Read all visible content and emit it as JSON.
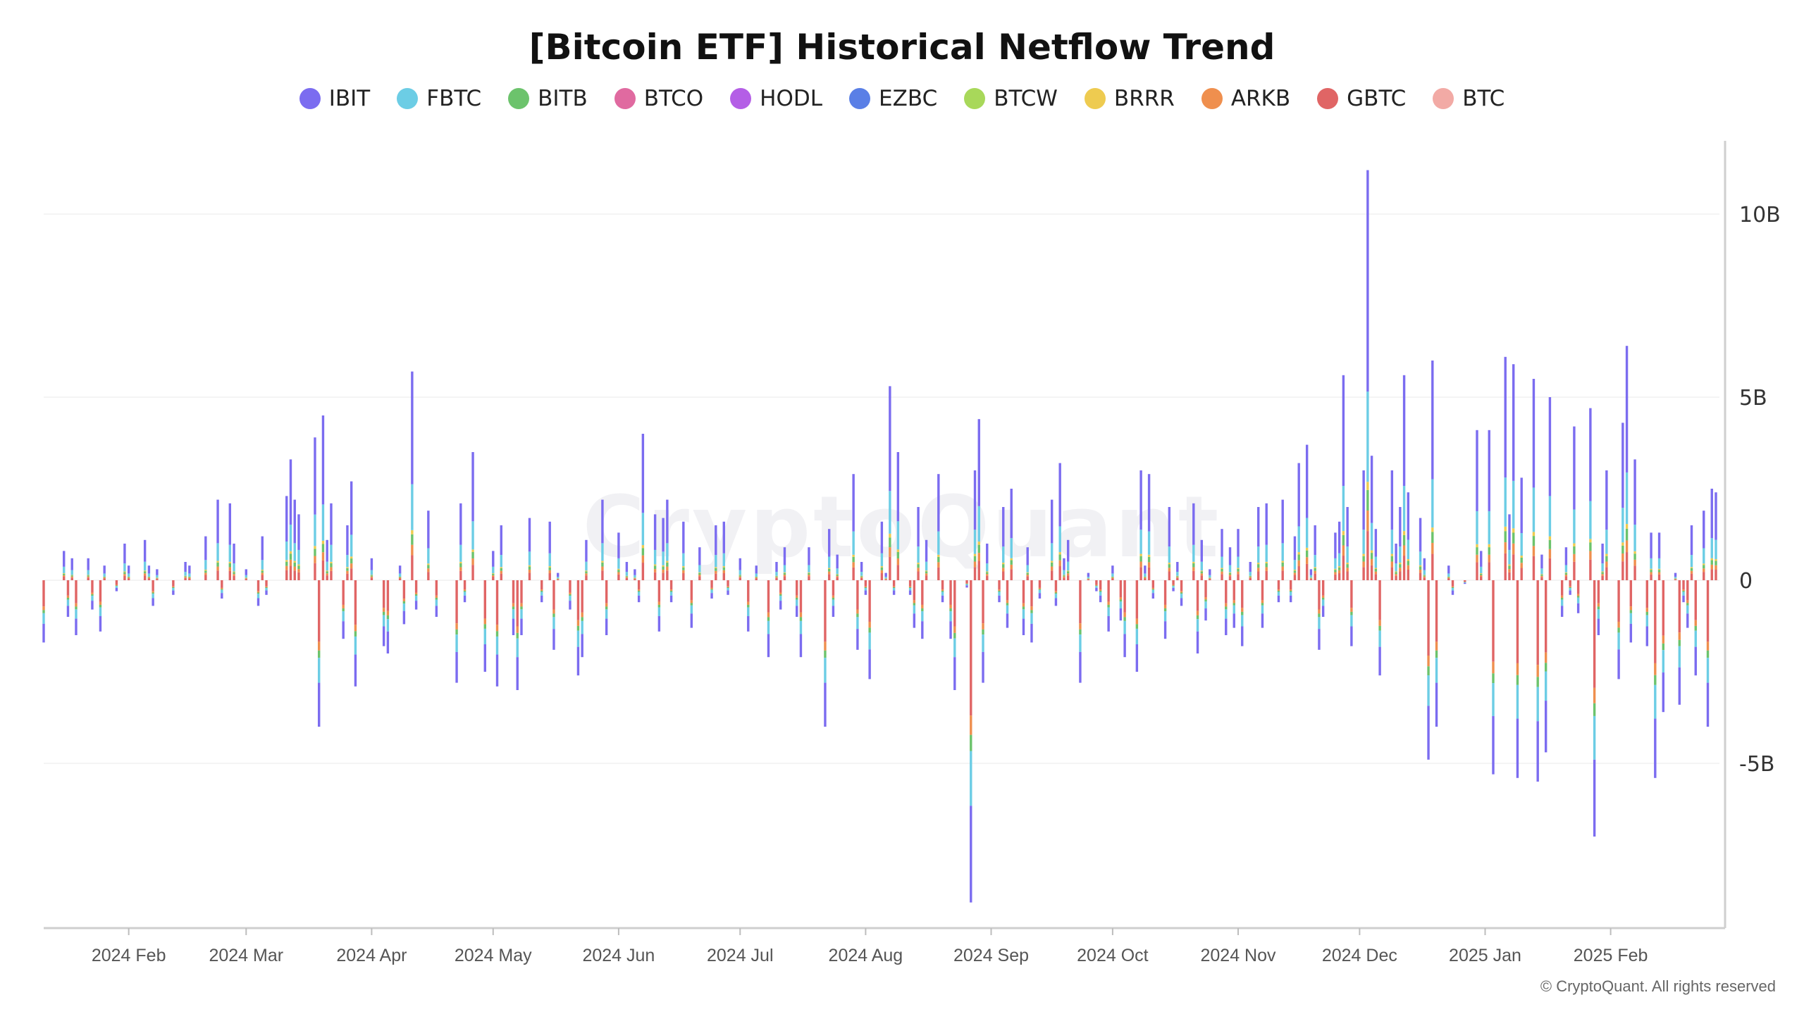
{
  "watermark": "CryptoQuant",
  "copyright": "© CryptoQuant. All rights reserved",
  "chart_data": {
    "type": "bar",
    "stacked": true,
    "title": "[Bitcoin ETF] Historical Netflow Trend",
    "legend_position": "top-center",
    "grid": true,
    "ylim": [
      -9.5,
      12
    ],
    "yticks": [
      {
        "value": 10,
        "label": "10B"
      },
      {
        "value": 5,
        "label": "5B"
      },
      {
        "value": 0,
        "label": "0"
      },
      {
        "value": -5,
        "label": "-5B"
      }
    ],
    "xlim": [
      "2024-01-11",
      "2025-02-27"
    ],
    "xticks": [
      {
        "date": "2024-02-01",
        "label": "2024 Feb"
      },
      {
        "date": "2024-03-01",
        "label": "2024 Mar"
      },
      {
        "date": "2024-04-01",
        "label": "2024 Apr"
      },
      {
        "date": "2024-05-01",
        "label": "2024 May"
      },
      {
        "date": "2024-06-01",
        "label": "2024 Jun"
      },
      {
        "date": "2024-07-01",
        "label": "2024 Jul"
      },
      {
        "date": "2024-08-01",
        "label": "2024 Aug"
      },
      {
        "date": "2024-09-01",
        "label": "2024 Sep"
      },
      {
        "date": "2024-10-01",
        "label": "2024 Oct"
      },
      {
        "date": "2024-11-01",
        "label": "2024 Nov"
      },
      {
        "date": "2024-12-01",
        "label": "2024 Dec"
      },
      {
        "date": "2025-01-01",
        "label": "2025 Jan"
      },
      {
        "date": "2025-02-01",
        "label": "2025 Feb"
      }
    ],
    "series": [
      {
        "name": "IBIT",
        "color": "#7b6cf0"
      },
      {
        "name": "FBTC",
        "color": "#6ccde5"
      },
      {
        "name": "BITB",
        "color": "#6cc36c"
      },
      {
        "name": "BTCO",
        "color": "#e06aa0"
      },
      {
        "name": "HODL",
        "color": "#b45ee6"
      },
      {
        "name": "EZBC",
        "color": "#5a7fe6"
      },
      {
        "name": "BTCW",
        "color": "#a8d85a"
      },
      {
        "name": "BRRR",
        "color": "#eecb50"
      },
      {
        "name": "ARKB",
        "color": "#ef8f4e"
      },
      {
        "name": "GBTC",
        "color": "#e06565"
      },
      {
        "name": "BTC",
        "color": "#f2aaa5"
      }
    ],
    "bars": [
      {
        "x": "2024-01-11",
        "v": -1.7
      },
      {
        "x": "2024-01-16",
        "v": 0.8
      },
      {
        "x": "2024-01-17",
        "v": -1.0
      },
      {
        "x": "2024-01-18",
        "v": 0.6
      },
      {
        "x": "2024-01-19",
        "v": -1.5
      },
      {
        "x": "2024-01-22",
        "v": 0.6
      },
      {
        "x": "2024-01-23",
        "v": -0.8
      },
      {
        "x": "2024-01-25",
        "v": -1.4
      },
      {
        "x": "2024-01-26",
        "v": 0.4
      },
      {
        "x": "2024-01-29",
        "v": -0.3
      },
      {
        "x": "2024-01-31",
        "v": 1.0
      },
      {
        "x": "2024-02-01",
        "v": 0.4
      },
      {
        "x": "2024-02-05",
        "v": 1.1
      },
      {
        "x": "2024-02-06",
        "v": 0.4
      },
      {
        "x": "2024-02-07",
        "v": -0.7
      },
      {
        "x": "2024-02-08",
        "v": 0.3
      },
      {
        "x": "2024-02-12",
        "v": -0.4
      },
      {
        "x": "2024-02-15",
        "v": 0.5
      },
      {
        "x": "2024-02-16",
        "v": 0.4
      },
      {
        "x": "2024-02-20",
        "v": 1.2
      },
      {
        "x": "2024-02-23",
        "v": 2.2
      },
      {
        "x": "2024-02-24",
        "v": -0.5
      },
      {
        "x": "2024-02-26",
        "v": 2.1
      },
      {
        "x": "2024-02-27",
        "v": 1.0
      },
      {
        "x": "2024-03-01",
        "v": 0.3
      },
      {
        "x": "2024-03-04",
        "v": -0.7
      },
      {
        "x": "2024-03-05",
        "v": 1.2
      },
      {
        "x": "2024-03-06",
        "v": -0.4
      },
      {
        "x": "2024-03-11",
        "v": 2.3
      },
      {
        "x": "2024-03-12",
        "v": 3.3
      },
      {
        "x": "2024-03-13",
        "v": 2.2
      },
      {
        "x": "2024-03-14",
        "v": 1.8
      },
      {
        "x": "2024-03-18",
        "v": 3.9
      },
      {
        "x": "2024-03-19",
        "v": -4.0
      },
      {
        "x": "2024-03-20",
        "v": 4.5
      },
      {
        "x": "2024-03-21",
        "v": 1.1
      },
      {
        "x": "2024-03-22",
        "v": 2.1
      },
      {
        "x": "2024-03-25",
        "v": -1.6
      },
      {
        "x": "2024-03-26",
        "v": 1.5
      },
      {
        "x": "2024-03-27",
        "v": 2.7
      },
      {
        "x": "2024-03-28",
        "v": -2.9
      },
      {
        "x": "2024-04-01",
        "v": 0.6
      },
      {
        "x": "2024-04-04",
        "v": -1.8
      },
      {
        "x": "2024-04-05",
        "v": -2.0
      },
      {
        "x": "2024-04-08",
        "v": 0.4
      },
      {
        "x": "2024-04-09",
        "v": -1.2
      },
      {
        "x": "2024-04-11",
        "v": 5.7
      },
      {
        "x": "2024-04-12",
        "v": -0.8
      },
      {
        "x": "2024-04-15",
        "v": 1.9
      },
      {
        "x": "2024-04-17",
        "v": -1.0
      },
      {
        "x": "2024-04-22",
        "v": -2.8
      },
      {
        "x": "2024-04-23",
        "v": 2.1
      },
      {
        "x": "2024-04-24",
        "v": -0.6
      },
      {
        "x": "2024-04-26",
        "v": 3.5
      },
      {
        "x": "2024-04-29",
        "v": -2.5
      },
      {
        "x": "2024-05-01",
        "v": 0.8
      },
      {
        "x": "2024-05-02",
        "v": -2.9
      },
      {
        "x": "2024-05-03",
        "v": 1.5
      },
      {
        "x": "2024-05-06",
        "v": -1.5
      },
      {
        "x": "2024-05-07",
        "v": -3.0
      },
      {
        "x": "2024-05-08",
        "v": -1.5
      },
      {
        "x": "2024-05-10",
        "v": 1.7
      },
      {
        "x": "2024-05-13",
        "v": -0.6
      },
      {
        "x": "2024-05-15",
        "v": 1.6
      },
      {
        "x": "2024-05-16",
        "v": -1.9
      },
      {
        "x": "2024-05-17",
        "v": 0.2
      },
      {
        "x": "2024-05-20",
        "v": -0.8
      },
      {
        "x": "2024-05-22",
        "v": -2.6
      },
      {
        "x": "2024-05-23",
        "v": -2.1
      },
      {
        "x": "2024-05-24",
        "v": 1.1
      },
      {
        "x": "2024-05-28",
        "v": 2.2
      },
      {
        "x": "2024-05-29",
        "v": -1.5
      },
      {
        "x": "2024-06-01",
        "v": 1.3
      },
      {
        "x": "2024-06-03",
        "v": 0.5
      },
      {
        "x": "2024-06-05",
        "v": 0.3
      },
      {
        "x": "2024-06-06",
        "v": -0.6
      },
      {
        "x": "2024-06-07",
        "v": 4.0
      },
      {
        "x": "2024-06-10",
        "v": 1.8
      },
      {
        "x": "2024-06-11",
        "v": -1.4
      },
      {
        "x": "2024-06-12",
        "v": 1.7
      },
      {
        "x": "2024-06-13",
        "v": 2.2
      },
      {
        "x": "2024-06-14",
        "v": -0.6
      },
      {
        "x": "2024-06-17",
        "v": 1.6
      },
      {
        "x": "2024-06-19",
        "v": -1.3
      },
      {
        "x": "2024-06-21",
        "v": 0.9
      },
      {
        "x": "2024-06-24",
        "v": -0.5
      },
      {
        "x": "2024-06-25",
        "v": 1.5
      },
      {
        "x": "2024-06-27",
        "v": 1.6
      },
      {
        "x": "2024-06-28",
        "v": -0.4
      },
      {
        "x": "2024-07-01",
        "v": 0.6
      },
      {
        "x": "2024-07-03",
        "v": -1.4
      },
      {
        "x": "2024-07-05",
        "v": 0.4
      },
      {
        "x": "2024-07-08",
        "v": -2.1
      },
      {
        "x": "2024-07-10",
        "v": 0.5
      },
      {
        "x": "2024-07-11",
        "v": -0.8
      },
      {
        "x": "2024-07-12",
        "v": 0.9
      },
      {
        "x": "2024-07-15",
        "v": -1.0
      },
      {
        "x": "2024-07-16",
        "v": -2.1
      },
      {
        "x": "2024-07-18",
        "v": 0.9
      },
      {
        "x": "2024-07-22",
        "v": -4.0
      },
      {
        "x": "2024-07-23",
        "v": 1.4
      },
      {
        "x": "2024-07-24",
        "v": -1.0
      },
      {
        "x": "2024-07-25",
        "v": 0.7
      },
      {
        "x": "2024-07-29",
        "v": 2.9
      },
      {
        "x": "2024-07-30",
        "v": -1.9
      },
      {
        "x": "2024-07-31",
        "v": 0.5
      },
      {
        "x": "2024-08-01",
        "v": -0.4
      },
      {
        "x": "2024-08-02",
        "v": -2.7
      },
      {
        "x": "2024-08-05",
        "v": 1.6
      },
      {
        "x": "2024-08-06",
        "v": 0.2
      },
      {
        "x": "2024-08-07",
        "v": 5.3
      },
      {
        "x": "2024-08-08",
        "v": -0.4
      },
      {
        "x": "2024-08-09",
        "v": 3.5
      },
      {
        "x": "2024-08-12",
        "v": -0.4
      },
      {
        "x": "2024-08-13",
        "v": -1.3
      },
      {
        "x": "2024-08-14",
        "v": 2.0
      },
      {
        "x": "2024-08-15",
        "v": -1.6
      },
      {
        "x": "2024-08-16",
        "v": 1.1
      },
      {
        "x": "2024-08-19",
        "v": 2.9
      },
      {
        "x": "2024-08-20",
        "v": -0.6
      },
      {
        "x": "2024-08-22",
        "v": -1.6
      },
      {
        "x": "2024-08-23",
        "v": -3.0
      },
      {
        "x": "2024-08-26",
        "v": -0.2
      },
      {
        "x": "2024-08-27",
        "v": -8.8
      },
      {
        "x": "2024-08-28",
        "v": 3.0
      },
      {
        "x": "2024-08-29",
        "v": 4.4
      },
      {
        "x": "2024-08-30",
        "v": -2.8
      },
      {
        "x": "2024-08-31",
        "v": 1.0
      },
      {
        "x": "2024-09-03",
        "v": -0.6
      },
      {
        "x": "2024-09-04",
        "v": 2.0
      },
      {
        "x": "2024-09-05",
        "v": -1.3
      },
      {
        "x": "2024-09-06",
        "v": 2.5
      },
      {
        "x": "2024-09-09",
        "v": -1.5
      },
      {
        "x": "2024-09-10",
        "v": 0.9
      },
      {
        "x": "2024-09-11",
        "v": -1.7
      },
      {
        "x": "2024-09-13",
        "v": -0.5
      },
      {
        "x": "2024-09-16",
        "v": 2.2
      },
      {
        "x": "2024-09-17",
        "v": -0.7
      },
      {
        "x": "2024-09-18",
        "v": 3.2
      },
      {
        "x": "2024-09-19",
        "v": 0.6
      },
      {
        "x": "2024-09-20",
        "v": 1.1
      },
      {
        "x": "2024-09-23",
        "v": -2.8
      },
      {
        "x": "2024-09-25",
        "v": 0.2
      },
      {
        "x": "2024-09-27",
        "v": -0.3
      },
      {
        "x": "2024-09-28",
        "v": -0.6
      },
      {
        "x": "2024-09-30",
        "v": -1.4
      },
      {
        "x": "2024-10-01",
        "v": 0.4
      },
      {
        "x": "2024-10-03",
        "v": -1.1
      },
      {
        "x": "2024-10-04",
        "v": -2.1
      },
      {
        "x": "2024-10-07",
        "v": -2.5
      },
      {
        "x": "2024-10-08",
        "v": 3.0
      },
      {
        "x": "2024-10-09",
        "v": 0.4
      },
      {
        "x": "2024-10-10",
        "v": 2.9
      },
      {
        "x": "2024-10-11",
        "v": -0.5
      },
      {
        "x": "2024-10-14",
        "v": -1.6
      },
      {
        "x": "2024-10-15",
        "v": 2.0
      },
      {
        "x": "2024-10-16",
        "v": -0.3
      },
      {
        "x": "2024-10-17",
        "v": 0.5
      },
      {
        "x": "2024-10-18",
        "v": -0.7
      },
      {
        "x": "2024-10-21",
        "v": 2.1
      },
      {
        "x": "2024-10-22",
        "v": -2.0
      },
      {
        "x": "2024-10-23",
        "v": 1.1
      },
      {
        "x": "2024-10-24",
        "v": -1.1
      },
      {
        "x": "2024-10-25",
        "v": 0.3
      },
      {
        "x": "2024-10-28",
        "v": 1.4
      },
      {
        "x": "2024-10-29",
        "v": -1.5
      },
      {
        "x": "2024-10-30",
        "v": 0.9
      },
      {
        "x": "2024-10-31",
        "v": -1.3
      },
      {
        "x": "2024-11-01",
        "v": 1.4
      },
      {
        "x": "2024-11-02",
        "v": -1.8
      },
      {
        "x": "2024-11-04",
        "v": 0.5
      },
      {
        "x": "2024-11-06",
        "v": 2.0
      },
      {
        "x": "2024-11-07",
        "v": -1.3
      },
      {
        "x": "2024-11-08",
        "v": 2.1
      },
      {
        "x": "2024-11-11",
        "v": -0.6
      },
      {
        "x": "2024-11-12",
        "v": 2.2
      },
      {
        "x": "2024-11-14",
        "v": -0.6
      },
      {
        "x": "2024-11-15",
        "v": 1.2
      },
      {
        "x": "2024-11-16",
        "v": 3.2
      },
      {
        "x": "2024-11-18",
        "v": 3.7
      },
      {
        "x": "2024-11-19",
        "v": 0.3
      },
      {
        "x": "2024-11-20",
        "v": 1.5
      },
      {
        "x": "2024-11-21",
        "v": -1.9
      },
      {
        "x": "2024-11-22",
        "v": -1.0
      },
      {
        "x": "2024-11-25",
        "v": 1.3
      },
      {
        "x": "2024-11-26",
        "v": 1.6
      },
      {
        "x": "2024-11-27",
        "v": 5.6
      },
      {
        "x": "2024-11-28",
        "v": 2.0
      },
      {
        "x": "2024-11-29",
        "v": -1.8
      },
      {
        "x": "2024-12-02",
        "v": 3.0
      },
      {
        "x": "2024-12-03",
        "v": 11.2
      },
      {
        "x": "2024-12-04",
        "v": 3.4
      },
      {
        "x": "2024-12-05",
        "v": 1.4
      },
      {
        "x": "2024-12-06",
        "v": -2.6
      },
      {
        "x": "2024-12-09",
        "v": 3.0
      },
      {
        "x": "2024-12-10",
        "v": 1.0
      },
      {
        "x": "2024-12-11",
        "v": 2.0
      },
      {
        "x": "2024-12-12",
        "v": 5.6
      },
      {
        "x": "2024-12-13",
        "v": 2.4
      },
      {
        "x": "2024-12-16",
        "v": 1.7
      },
      {
        "x": "2024-12-17",
        "v": 0.6
      },
      {
        "x": "2024-12-18",
        "v": -4.9
      },
      {
        "x": "2024-12-19",
        "v": 6.0
      },
      {
        "x": "2024-12-20",
        "v": -4.0
      },
      {
        "x": "2024-12-23",
        "v": 0.4
      },
      {
        "x": "2024-12-24",
        "v": -0.4
      },
      {
        "x": "2024-12-27",
        "v": -0.1
      },
      {
        "x": "2024-12-30",
        "v": 4.1
      },
      {
        "x": "2024-12-31",
        "v": 0.8
      },
      {
        "x": "2025-01-02",
        "v": 4.1
      },
      {
        "x": "2025-01-03",
        "v": -5.3
      },
      {
        "x": "2025-01-06",
        "v": 6.1
      },
      {
        "x": "2025-01-07",
        "v": 1.8
      },
      {
        "x": "2025-01-08",
        "v": 5.9
      },
      {
        "x": "2025-01-09",
        "v": -5.4
      },
      {
        "x": "2025-01-10",
        "v": 2.8
      },
      {
        "x": "2025-01-13",
        "v": 5.5
      },
      {
        "x": "2025-01-14",
        "v": -5.5
      },
      {
        "x": "2025-01-15",
        "v": 0.7
      },
      {
        "x": "2025-01-16",
        "v": -4.7
      },
      {
        "x": "2025-01-17",
        "v": 5.0
      },
      {
        "x": "2025-01-20",
        "v": -1.0
      },
      {
        "x": "2025-01-21",
        "v": 0.9
      },
      {
        "x": "2025-01-22",
        "v": -0.4
      },
      {
        "x": "2025-01-23",
        "v": 4.2
      },
      {
        "x": "2025-01-24",
        "v": -0.9
      },
      {
        "x": "2025-01-27",
        "v": 4.7
      },
      {
        "x": "2025-01-28",
        "v": -7.0
      },
      {
        "x": "2025-01-29",
        "v": -1.5
      },
      {
        "x": "2025-01-30",
        "v": 1.0
      },
      {
        "x": "2025-01-31",
        "v": 3.0
      },
      {
        "x": "2025-02-03",
        "v": -2.7
      },
      {
        "x": "2025-02-04",
        "v": 4.3
      },
      {
        "x": "2025-02-05",
        "v": 6.4
      },
      {
        "x": "2025-02-06",
        "v": -1.7
      },
      {
        "x": "2025-02-07",
        "v": 3.3
      },
      {
        "x": "2025-02-10",
        "v": -1.8
      },
      {
        "x": "2025-02-11",
        "v": 1.3
      },
      {
        "x": "2025-02-12",
        "v": -5.4
      },
      {
        "x": "2025-02-13",
        "v": 1.3
      },
      {
        "x": "2025-02-14",
        "v": -3.6
      },
      {
        "x": "2025-02-17",
        "v": 0.2
      },
      {
        "x": "2025-02-18",
        "v": -3.4
      },
      {
        "x": "2025-02-19",
        "v": -0.6
      },
      {
        "x": "2025-02-20",
        "v": -1.3
      },
      {
        "x": "2025-02-21",
        "v": 1.5
      },
      {
        "x": "2025-02-22",
        "v": -2.6
      },
      {
        "x": "2025-02-24",
        "v": 1.9
      },
      {
        "x": "2025-02-25",
        "v": -4.0
      },
      {
        "x": "2025-02-26",
        "v": 2.5
      },
      {
        "x": "2025-02-27",
        "v": 2.4
      }
    ]
  }
}
